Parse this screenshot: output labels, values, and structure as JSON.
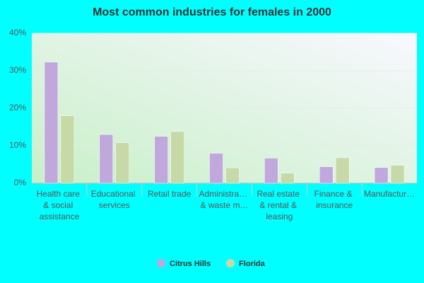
{
  "chart_data": {
    "type": "bar",
    "title": "Most common industries for females in 2000",
    "categories": [
      "Health care & social assistance",
      "Educational services",
      "Retail trade",
      "Administra… & waste m…",
      "Real estate & rental & leasing",
      "Finance & insurance",
      "Manufactur…"
    ],
    "series": [
      {
        "name": "Citrus Hills",
        "color": "#c0a8dc",
        "values": [
          32.3,
          13.0,
          12.5,
          8.0,
          6.7,
          4.4,
          4.2
        ]
      },
      {
        "name": "Florida",
        "color": "#c6d9a6",
        "values": [
          18.0,
          10.8,
          13.8,
          4.1,
          2.7,
          6.8,
          4.8
        ]
      }
    ],
    "ylim": [
      0,
      40
    ],
    "yticks": [
      {
        "value": 0,
        "label": "0%"
      },
      {
        "value": 10,
        "label": "10%"
      },
      {
        "value": 20,
        "label": "20%"
      },
      {
        "value": 30,
        "label": "30%"
      },
      {
        "value": 40,
        "label": "40%"
      }
    ],
    "grid": true
  }
}
